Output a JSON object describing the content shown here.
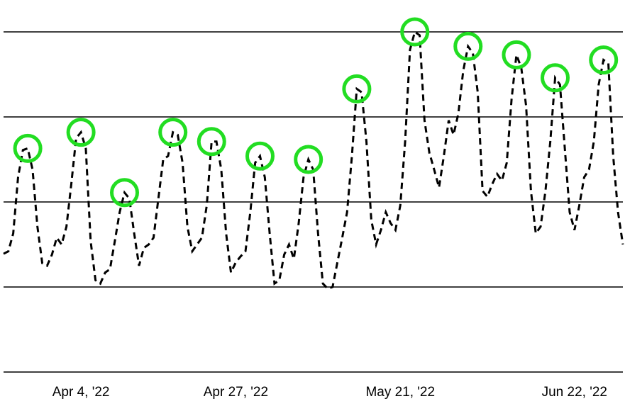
{
  "chart_data": {
    "type": "line",
    "categories": [
      null,
      null,
      null,
      null,
      null,
      null,
      null,
      null,
      null,
      null,
      null,
      null,
      null,
      null,
      null,
      null,
      "Apr 4, '22",
      null,
      null,
      null,
      null,
      null,
      null,
      null,
      null,
      null,
      null,
      null,
      null,
      null,
      null,
      null,
      null,
      null,
      null,
      null,
      null,
      null,
      null,
      null,
      null,
      null,
      null,
      null,
      null,
      null,
      null,
      null,
      "Apr 27, '22",
      null,
      null,
      null,
      null,
      null,
      null,
      null,
      null,
      null,
      null,
      null,
      null,
      null,
      null,
      null,
      null,
      null,
      null,
      null,
      null,
      null,
      null,
      null,
      null,
      null,
      null,
      null,
      null,
      null,
      null,
      null,
      null,
      null,
      "May 21, '22",
      null,
      null,
      null,
      null,
      null,
      null,
      null,
      null,
      null,
      null,
      null,
      null,
      null,
      null,
      null,
      null,
      null,
      null,
      null,
      null,
      null,
      null,
      null,
      null,
      null,
      null,
      null,
      null,
      null,
      null,
      null,
      null,
      null,
      null,
      null,
      "Jun 22, '22",
      null,
      null,
      null,
      null,
      null,
      null,
      null,
      null,
      null,
      null
    ],
    "series": [
      {
        "color": "#000000",
        "values": [
          1.39,
          1.42,
          1.63,
          2.29,
          2.61,
          2.63,
          2.38,
          1.71,
          1.28,
          1.25,
          1.38,
          1.58,
          1.5,
          1.71,
          2.21,
          2.75,
          2.82,
          2.63,
          1.54,
          1.08,
          1.04,
          1.17,
          1.21,
          1.54,
          1.88,
          2.11,
          2.04,
          1.63,
          1.25,
          1.46,
          1.5,
          1.58,
          2.04,
          2.5,
          2.54,
          2.82,
          2.79,
          2.46,
          1.71,
          1.42,
          1.5,
          1.58,
          1.96,
          2.71,
          2.71,
          2.38,
          1.63,
          1.17,
          1.29,
          1.36,
          1.42,
          1.88,
          2.46,
          2.54,
          2.29,
          1.63,
          1.04,
          1.08,
          1.38,
          1.5,
          1.33,
          1.75,
          2.29,
          2.5,
          2.38,
          1.63,
          1.04,
          0.98,
          1,
          1.29,
          1.58,
          1.88,
          2.54,
          3.33,
          3.29,
          2.71,
          1.79,
          1.5,
          1.67,
          1.88,
          1.75,
          1.67,
          1.96,
          2.71,
          3.79,
          4,
          3.96,
          2.96,
          2.58,
          2.38,
          2.17,
          2.54,
          2.96,
          2.79,
          3.04,
          3.54,
          3.83,
          3.75,
          3.29,
          2.13,
          2.06,
          2.21,
          2.33,
          2.25,
          2.46,
          3.21,
          3.73,
          3.58,
          3.13,
          2.13,
          1.63,
          1.71,
          2.13,
          2.71,
          3.46,
          3.38,
          2.63,
          1.88,
          1.67,
          1.96,
          2.29,
          2.38,
          2.71,
          3.38,
          3.67,
          3.63,
          2.54,
          1.88,
          1.5
        ]
      }
    ],
    "highlight": [
      5,
      16,
      25,
      35,
      43,
      53,
      63,
      73,
      85,
      96,
      106,
      114,
      124
    ],
    "highlight_color": "#22dd22",
    "ylim": [
      0,
      4
    ],
    "yticks": [
      0,
      1,
      2,
      3,
      4
    ],
    "grid": true
  }
}
